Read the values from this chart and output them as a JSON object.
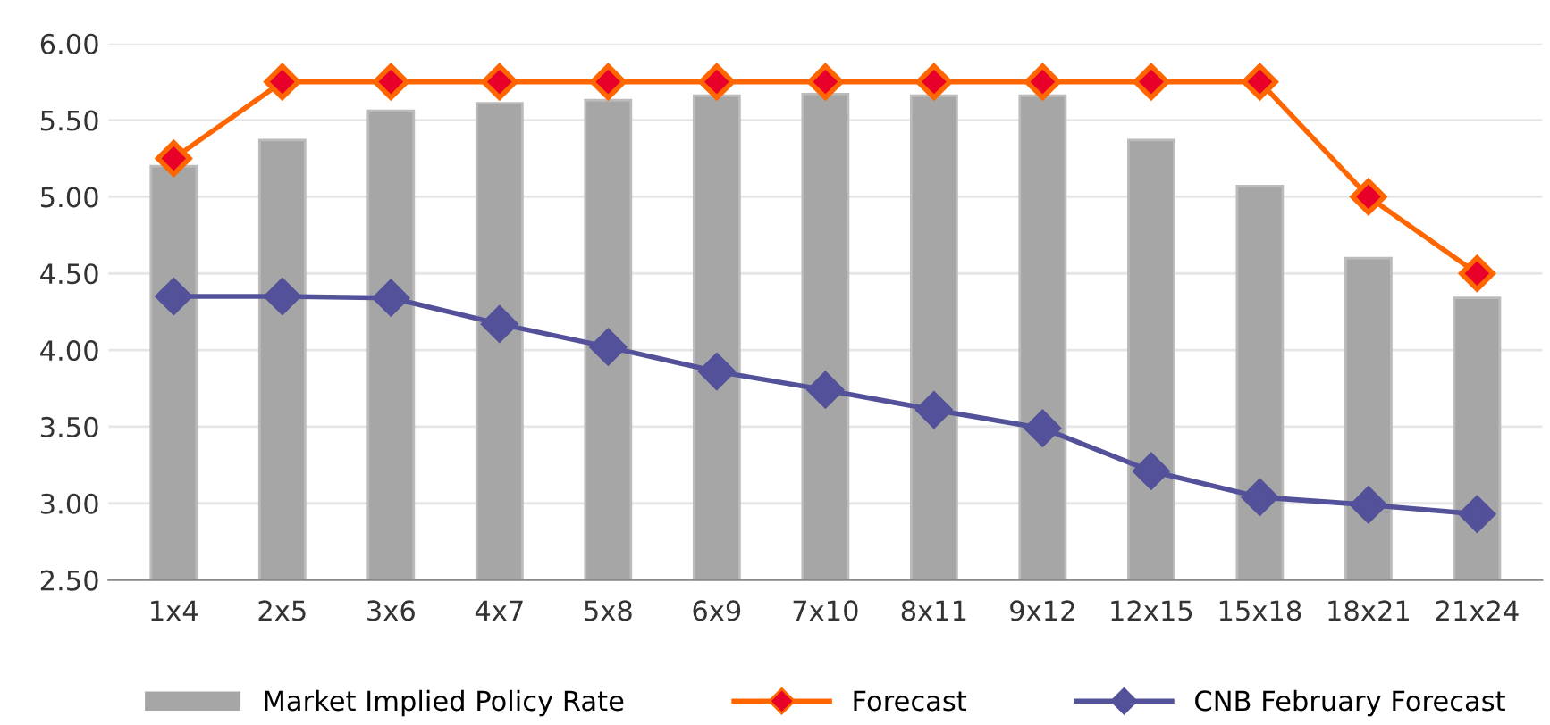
{
  "chart_data": {
    "type": "bar",
    "categories": [
      "1x4",
      "2x5",
      "3x6",
      "4x7",
      "5x8",
      "6x9",
      "7x10",
      "8x11",
      "9x12",
      "12x15",
      "15x18",
      "18x21",
      "21x24"
    ],
    "series": [
      {
        "name": "Market Implied Policy Rate",
        "color": "#a6a6a6",
        "values": [
          5.2,
          5.37,
          5.56,
          5.61,
          5.63,
          5.66,
          5.67,
          5.66,
          5.66,
          5.37,
          5.07,
          4.6,
          4.34
        ]
      },
      {
        "name": "Forecast",
        "type": "line",
        "color": "#ff6600",
        "marker": "diamond",
        "values": [
          5.25,
          5.75,
          5.75,
          5.75,
          5.75,
          5.75,
          5.75,
          5.75,
          5.75,
          5.75,
          5.75,
          5.0,
          4.5
        ]
      },
      {
        "name": "CNB February Forecast",
        "type": "line",
        "color": "#525199",
        "marker": "diamond",
        "values": [
          4.35,
          4.35,
          4.34,
          4.17,
          4.02,
          3.86,
          3.74,
          3.61,
          3.49,
          3.21,
          3.04,
          2.99,
          2.93
        ]
      }
    ],
    "ylim": [
      2.5,
      6.0
    ],
    "yticks": [
      {
        "value": 2.5,
        "label": "2.50"
      },
      {
        "value": 3.0,
        "label": "3.00"
      },
      {
        "value": 3.5,
        "label": "3.50"
      },
      {
        "value": 4.0,
        "label": "4.00"
      },
      {
        "value": 4.5,
        "label": "4.50"
      },
      {
        "value": 5.0,
        "label": "5.00"
      },
      {
        "value": 5.5,
        "label": "5.50"
      },
      {
        "value": 6.0,
        "label": "6.00"
      }
    ],
    "grid": "y",
    "legend": "bottom"
  }
}
